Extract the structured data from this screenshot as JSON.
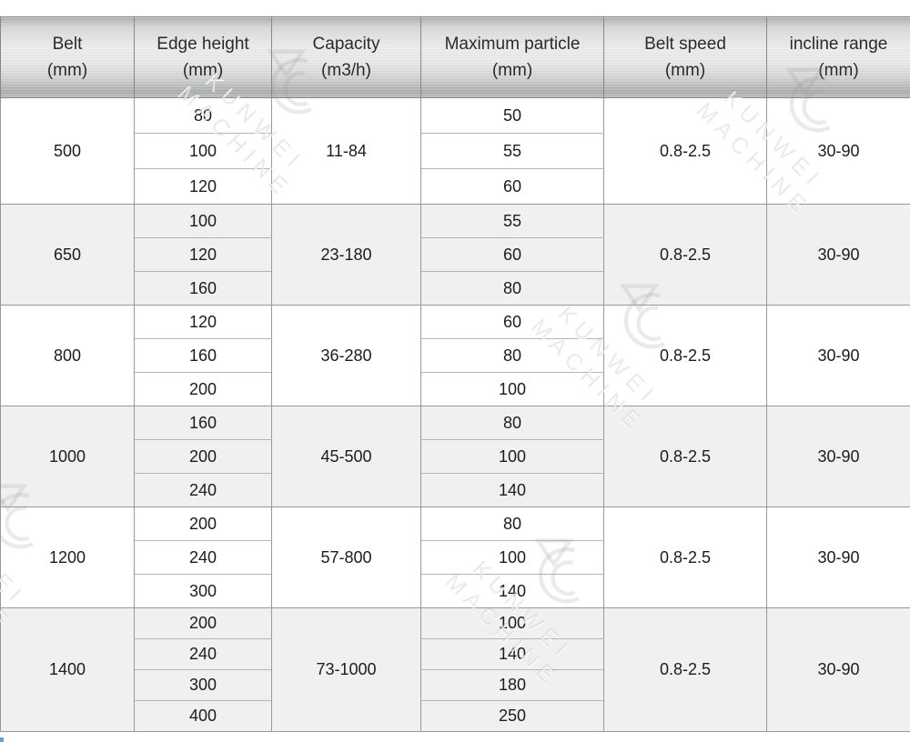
{
  "header": {
    "columns": [
      {
        "label": "Belt",
        "unit": "(mm)"
      },
      {
        "label": "Edge height",
        "unit": "(mm)"
      },
      {
        "label": "Capacity",
        "unit": "(m3/h)"
      },
      {
        "label": "Maximum particle",
        "unit": "(mm)"
      },
      {
        "label": "Belt speed",
        "unit": "(mm)"
      },
      {
        "label": "incline range",
        "unit": "(mm)"
      }
    ]
  },
  "table": {
    "groups": [
      {
        "belt": "500",
        "edge_heights": [
          "80",
          "100",
          "120"
        ],
        "capacity": "11-84",
        "max_particles": [
          "50",
          "55",
          "60"
        ],
        "belt_speed": "0.8-2.5",
        "incline_range": "30-90"
      },
      {
        "belt": "650",
        "edge_heights": [
          "100",
          "120",
          "160"
        ],
        "capacity": "23-180",
        "max_particles": [
          "55",
          "60",
          "80"
        ],
        "belt_speed": "0.8-2.5",
        "incline_range": "30-90"
      },
      {
        "belt": "800",
        "edge_heights": [
          "120",
          "160",
          "200"
        ],
        "capacity": "36-280",
        "max_particles": [
          "60",
          "80",
          "100"
        ],
        "belt_speed": "0.8-2.5",
        "incline_range": "30-90"
      },
      {
        "belt": "1000",
        "edge_heights": [
          "160",
          "200",
          "240"
        ],
        "capacity": "45-500",
        "max_particles": [
          "80",
          "100",
          "140"
        ],
        "belt_speed": "0.8-2.5",
        "incline_range": "30-90"
      },
      {
        "belt": "1200",
        "edge_heights": [
          "200",
          "240",
          "300"
        ],
        "capacity": "57-800",
        "max_particles": [
          "80",
          "100",
          "140"
        ],
        "belt_speed": "0.8-2.5",
        "incline_range": "30-90"
      },
      {
        "belt": "1400",
        "edge_heights": [
          "200",
          "240",
          "300",
          "400"
        ],
        "capacity": "73-1000",
        "max_particles": [
          "100",
          "140",
          "180",
          "250"
        ],
        "belt_speed": "0.8-2.5",
        "incline_range": "30-90"
      }
    ]
  },
  "watermark": {
    "line1": "KUNWEI",
    "line2": "MACHINE"
  },
  "colors": {
    "header_text": "#2a2b2d",
    "body_text": "#1c1c1c",
    "shaded_row_bg": "#f1f0ee",
    "border_major": "#96989a",
    "border_minor": "#b3b5b7",
    "header_metal_light": "#eaebec",
    "header_metal_dark": "#a6a8aa"
  }
}
